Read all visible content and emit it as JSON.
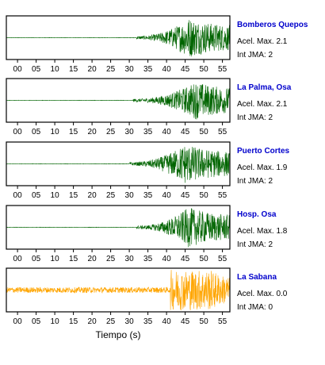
{
  "chart_data": {
    "type": "line",
    "xlabel": "Tiempo (s)",
    "xlim": [
      -3,
      57
    ],
    "x_ticks": [
      "00",
      "05",
      "10",
      "15",
      "20",
      "25",
      "30",
      "35",
      "40",
      "45",
      "50",
      "55"
    ],
    "x_tick_values": [
      0,
      5,
      10,
      15,
      20,
      25,
      30,
      35,
      40,
      45,
      50,
      55
    ],
    "panels": [
      {
        "name": "Bomberos Quepos",
        "accel_label": "Acel. Max.",
        "accel_value": "2.1",
        "jma_label": "Int JMA:",
        "jma_value": "2",
        "color": "#006400",
        "onset_s": 32,
        "peak_s": 46,
        "peak_amp": 1.0
      },
      {
        "name": "La Palma, Osa",
        "accel_label": "Acel. Max.",
        "accel_value": "2.1",
        "jma_label": "Int JMA:",
        "jma_value": "2",
        "color": "#006400",
        "onset_s": 31,
        "peak_s": 48,
        "peak_amp": 0.95
      },
      {
        "name": "Puerto Cortes",
        "accel_label": "Acel. Max.",
        "accel_value": "1.9",
        "jma_label": "Int JMA:",
        "jma_value": "2",
        "color": "#006400",
        "onset_s": 30,
        "peak_s": 45,
        "peak_amp": 1.0
      },
      {
        "name": "Hosp. Osa",
        "accel_label": "Acel. Max.",
        "accel_value": "1.8",
        "jma_label": "Int JMA:",
        "jma_value": "2",
        "color": "#006400",
        "onset_s": 32,
        "peak_s": 46,
        "peak_amp": 1.0
      },
      {
        "name": "La Sabana",
        "accel_label": "Acel. Max.",
        "accel_value": "0.0",
        "jma_label": "Int JMA:",
        "jma_value": "0",
        "color": "#ffa500",
        "onset_s": -3,
        "peak_s": 45,
        "peak_amp": 1.0
      }
    ]
  }
}
